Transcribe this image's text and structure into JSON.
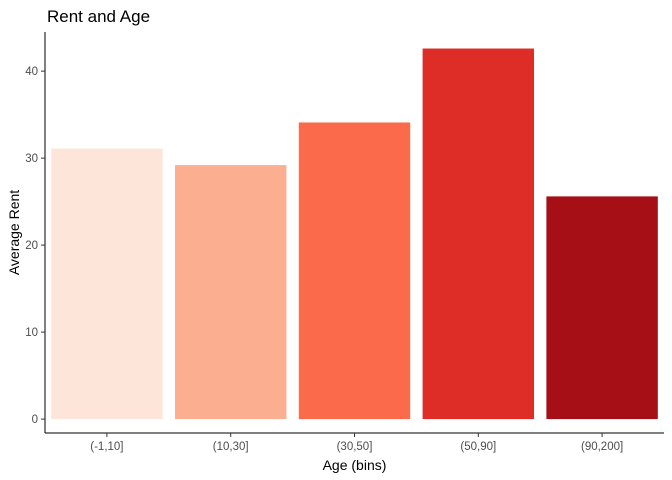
{
  "chart_data": {
    "type": "bar",
    "title": "Rent and Age",
    "xlabel": "Age (bins)",
    "ylabel": "Average Rent",
    "categories": [
      "(-1,10]",
      "(10,30]",
      "(30,50]",
      "(50,90]",
      "(90,200]"
    ],
    "values": [
      31.1,
      29.2,
      34.1,
      42.6,
      25.6
    ],
    "colors": [
      "#fee5d9",
      "#fcae91",
      "#fb6a4a",
      "#de2d26",
      "#a50f15"
    ],
    "yticks": [
      0,
      10,
      20,
      30,
      40
    ],
    "ylim": [
      -1.6,
      44.5
    ],
    "grid": false,
    "legend": "none"
  }
}
